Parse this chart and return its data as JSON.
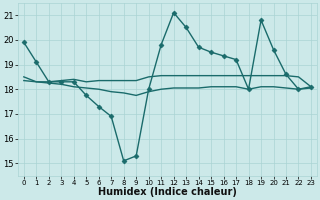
{
  "xlabel": "Humidex (Indice chaleur)",
  "background_color": "#cce9e9",
  "grid_color": "#aad4d4",
  "line_color": "#1a6b6b",
  "xlim": [
    -0.5,
    23.5
  ],
  "ylim": [
    14.5,
    21.5
  ],
  "yticks": [
    15,
    16,
    17,
    18,
    19,
    20,
    21
  ],
  "xticks": [
    0,
    1,
    2,
    3,
    4,
    5,
    6,
    7,
    8,
    9,
    10,
    11,
    12,
    13,
    14,
    15,
    16,
    17,
    18,
    19,
    20,
    21,
    22,
    23
  ],
  "series": [
    {
      "x": [
        0,
        1,
        2,
        3,
        4,
        5,
        6,
        7,
        8,
        9,
        10,
        11,
        12,
        13,
        14,
        15,
        16,
        17,
        18,
        19,
        20,
        21,
        22,
        23
      ],
      "y": [
        19.9,
        19.1,
        18.3,
        18.3,
        18.3,
        17.75,
        17.3,
        16.9,
        15.1,
        15.3,
        18.0,
        19.8,
        21.1,
        20.5,
        19.7,
        19.5,
        19.35,
        19.2,
        18.0,
        20.8,
        19.6,
        18.6,
        18.0,
        18.1
      ],
      "marker": "D",
      "marker_size": 2.5,
      "linewidth": 1.0
    },
    {
      "x": [
        0,
        1,
        2,
        3,
        4,
        5,
        6,
        7,
        8,
        9,
        10,
        11,
        12,
        13,
        14,
        15,
        16,
        17,
        18,
        19,
        20,
        21,
        22,
        23
      ],
      "y": [
        18.5,
        18.3,
        18.3,
        18.35,
        18.4,
        18.3,
        18.35,
        18.35,
        18.35,
        18.35,
        18.5,
        18.55,
        18.55,
        18.55,
        18.55,
        18.55,
        18.55,
        18.55,
        18.55,
        18.55,
        18.55,
        18.55,
        18.5,
        18.1
      ],
      "marker": null,
      "marker_size": 0,
      "linewidth": 1.0
    },
    {
      "x": [
        0,
        1,
        2,
        3,
        4,
        5,
        6,
        7,
        8,
        9,
        10,
        11,
        12,
        13,
        14,
        15,
        16,
        17,
        18,
        19,
        20,
        21,
        22,
        23
      ],
      "y": [
        18.35,
        18.3,
        18.25,
        18.2,
        18.1,
        18.05,
        18.0,
        17.9,
        17.85,
        17.75,
        17.9,
        18.0,
        18.05,
        18.05,
        18.05,
        18.1,
        18.1,
        18.1,
        18.0,
        18.1,
        18.1,
        18.05,
        18.0,
        18.05
      ],
      "marker": null,
      "marker_size": 0,
      "linewidth": 1.0
    }
  ]
}
